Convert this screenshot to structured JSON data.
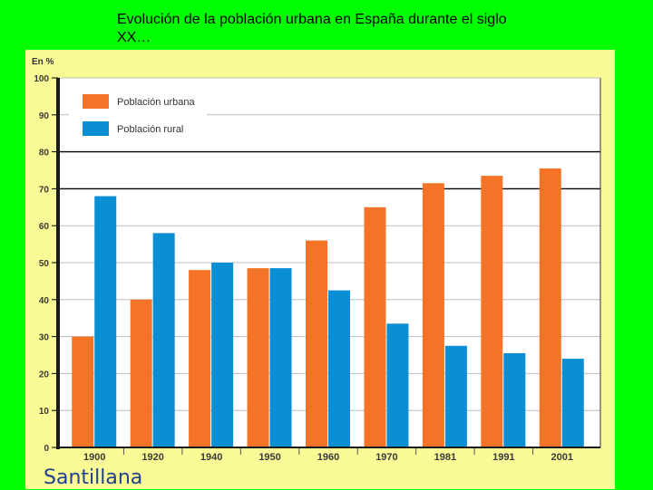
{
  "slide": {
    "title": "Evolución de la población urbana en España durante el siglo XX…",
    "brand": "Santillana"
  },
  "colors": {
    "background": "#00ff00",
    "panel": "#fafa96",
    "urbana": "#f47326",
    "rural": "#0a8fd4"
  },
  "chart_data": {
    "type": "bar",
    "title": "",
    "ylabel": "En %",
    "xlabel": "",
    "ylim": [
      0,
      100
    ],
    "yticks": [
      0,
      10,
      20,
      30,
      40,
      50,
      60,
      70,
      80,
      90,
      100
    ],
    "categories": [
      "1900",
      "1920",
      "1940",
      "1950",
      "1960",
      "1970",
      "1981",
      "1991",
      "2001"
    ],
    "series": [
      {
        "name": "Población urbana",
        "color": "#f47326",
        "values": [
          30,
          40,
          48,
          48.5,
          56,
          65,
          71.5,
          73.5,
          75.5
        ]
      },
      {
        "name": "Población rural",
        "color": "#0a8fd4",
        "values": [
          68,
          58,
          50,
          48.5,
          42.5,
          33.5,
          27.5,
          25.5,
          24
        ]
      }
    ],
    "legend_position": "top-left",
    "grid": true
  }
}
